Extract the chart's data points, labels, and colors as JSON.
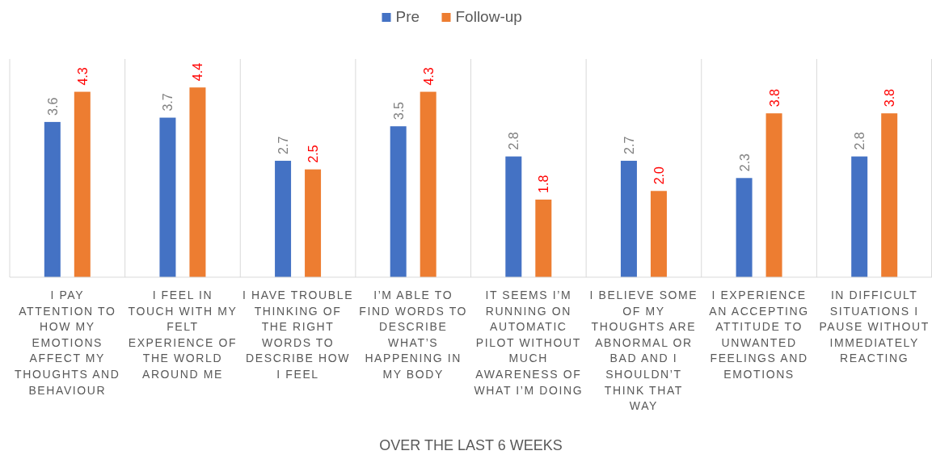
{
  "chart_data": {
    "type": "bar",
    "xlabel": "OVER THE LAST 6 WEEKS",
    "categories": [
      "I PAY ATTENTION TO HOW MY EMOTIONS AFFECT MY THOUGHTS AND BEHAVIOUR",
      "I FEEL IN TOUCH WITH MY FELT EXPERIENCE OF THE WORLD AROUND ME",
      "I HAVE TROUBLE THINKING OF THE RIGHT WORDS TO DESCRIBE HOW I FEEL",
      "I’M ABLE TO FIND WORDS TO DESCRIBE WHAT’S HAPPENING IN MY BODY",
      "IT SEEMS I’M RUNNING ON AUTOMATIC PILOT WITHOUT MUCH AWARENESS OF WHAT I’M DOING",
      "I BELIEVE SOME OF MY THOUGHTS ARE ABNORMAL OR BAD AND I SHOULDN’T THINK THAT WAY",
      "I EXPERIENCE AN ACCEPTING ATTITUDE TO UNWANTED FEELINGS AND EMOTIONS",
      "IN DIFFICULT SITUATIONS I PAUSE WITHOUT IMMEDIATELY REACTING"
    ],
    "series": [
      {
        "name": "Pre",
        "color": "#4472c4",
        "values": [
          3.6,
          3.7,
          2.7,
          3.5,
          2.8,
          2.7,
          2.3,
          2.8
        ],
        "value_labels": [
          "3.6",
          "3.7",
          "2.7",
          "3.5",
          "2.8",
          "2.7",
          "2.3",
          "2.8"
        ]
      },
      {
        "name": "Follow-up",
        "color": "#ed7d31",
        "values": [
          4.3,
          4.4,
          2.5,
          4.3,
          1.8,
          2.0,
          3.8,
          3.8
        ],
        "value_labels": [
          "4.3",
          "4.4",
          "2.5",
          "4.3",
          "1.8",
          "2.0",
          "3.8",
          "3.8"
        ]
      }
    ],
    "grid": "x",
    "legend": "top"
  }
}
